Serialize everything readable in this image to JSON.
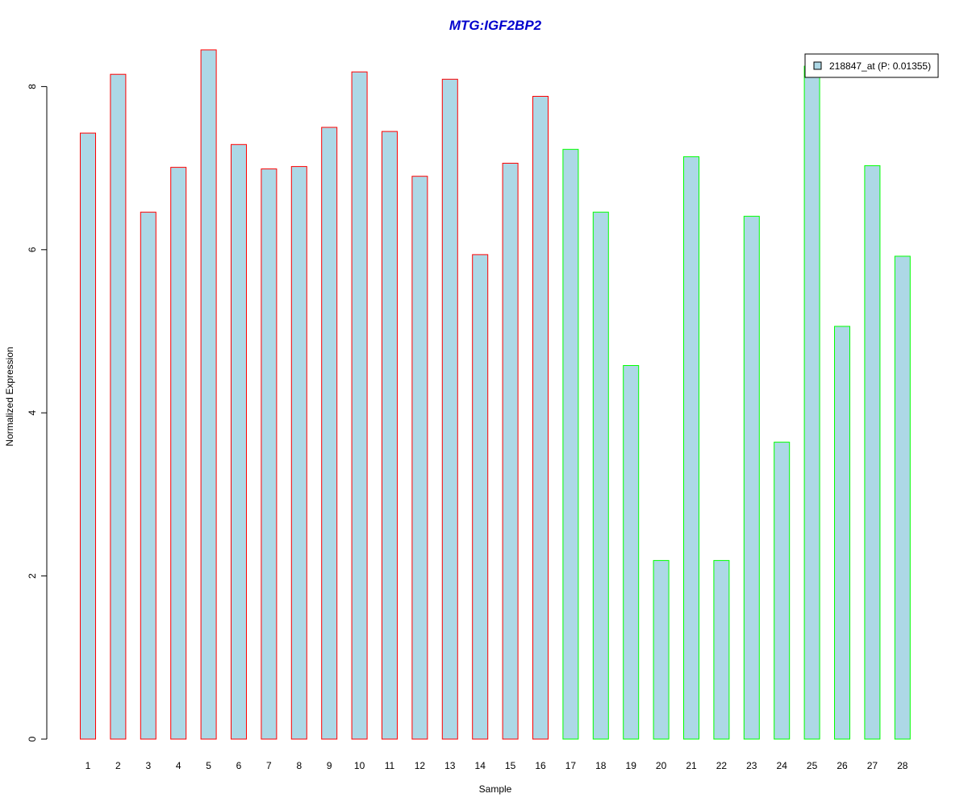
{
  "chart_data": {
    "type": "bar",
    "title": "MTG:IGF2BP2",
    "xlabel": "Sample",
    "ylabel": "Normalized Expression",
    "ylim": [
      0,
      8.5
    ],
    "yticks": [
      "0",
      "2",
      "4",
      "6",
      "8"
    ],
    "categories": [
      "1",
      "2",
      "3",
      "4",
      "5",
      "6",
      "7",
      "8",
      "9",
      "10",
      "11",
      "12",
      "13",
      "14",
      "15",
      "16",
      "17",
      "18",
      "19",
      "20",
      "21",
      "22",
      "23",
      "24",
      "25",
      "26",
      "27",
      "28"
    ],
    "series": [
      {
        "name": "218847_at (P: 0.01355)",
        "values": [
          7.43,
          8.15,
          6.46,
          7.01,
          8.45,
          7.29,
          6.99,
          7.02,
          7.5,
          8.18,
          7.45,
          6.9,
          8.09,
          5.94,
          7.06,
          7.88,
          7.23,
          6.46,
          4.58,
          2.19,
          7.14,
          2.19,
          6.41,
          3.64,
          8.25,
          5.06,
          7.03,
          5.92
        ],
        "groups": [
          1,
          1,
          1,
          1,
          1,
          1,
          1,
          1,
          1,
          1,
          1,
          1,
          1,
          1,
          1,
          1,
          2,
          2,
          2,
          2,
          2,
          2,
          2,
          2,
          2,
          2,
          2,
          2
        ]
      }
    ],
    "legend": {
      "label": "218847_at (P: 0.01355)",
      "position": "top-right"
    },
    "grid": false,
    "colors": {
      "fill": "#add8e6",
      "group1_border": "#ff0000",
      "group2_border": "#00ff00",
      "title": "#0000cd",
      "axis": "#000000"
    }
  }
}
